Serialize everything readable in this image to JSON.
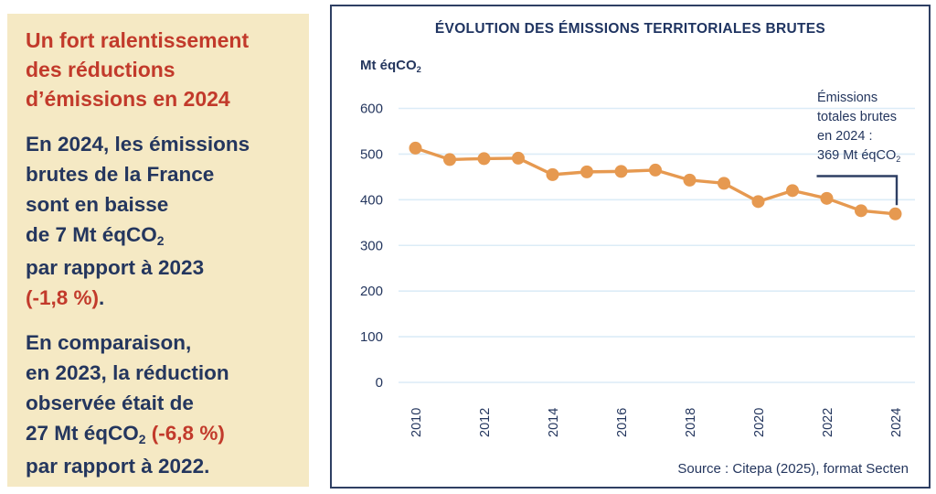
{
  "colors": {
    "sidebar_bg": "#f5e9c4",
    "accent_red": "#c23a2b",
    "navy_text": "#24365e",
    "line_orange": "#e69950",
    "grid_blue": "#dcecf7",
    "frame_navy": "#2e3f63"
  },
  "sidebar": {
    "heading": "Un fort ralentissement\ndes réductions\nd’émissions en 2024",
    "p1_a": "En 2024, les émissions\nbrutes de la France\nsont en baisse\nde 7 Mt éqCO",
    "p1_sub": "2",
    "p1_b": "\npar rapport à 2023\n",
    "p1_red": "(-1,8 %)",
    "p1_c": ".",
    "p2_a": "En comparaison,\nen 2023, la réduction\nobservée était de\n27 Mt éqCO",
    "p2_sub": "2",
    "p2_red": " (-6,8 %)",
    "p2_b": "\npar rapport à 2022."
  },
  "chart_data": {
    "type": "line",
    "title": "ÉVOLUTION DES ÉMISSIONS TERRITORIALES BRUTES",
    "ylabel_main": "Mt éqCO",
    "ylabel_sub": "2",
    "x": [
      2010,
      2011,
      2012,
      2013,
      2014,
      2015,
      2016,
      2017,
      2018,
      2019,
      2020,
      2021,
      2022,
      2023,
      2024
    ],
    "values": [
      513,
      488,
      490,
      491,
      455,
      461,
      462,
      465,
      443,
      436,
      396,
      420,
      403,
      376,
      369
    ],
    "ylim": [
      0,
      600
    ],
    "yticks": [
      0,
      100,
      200,
      300,
      400,
      500,
      600
    ],
    "xticks_shown": [
      "2010",
      "2012",
      "2014",
      "2016",
      "2018",
      "2020",
      "2022",
      "2024"
    ],
    "grid": "horizontal",
    "legend": "none",
    "marker": "circle",
    "line_color": "#e69950",
    "annotation": {
      "line1": "Émissions",
      "line2": "totales brutes",
      "line3": "en 2024 :",
      "line4_main": "369 Mt éqCO",
      "line4_sub": "2",
      "target_year": 2024,
      "value": 369
    },
    "source": "Source : Citepa (2025), format Secten"
  }
}
